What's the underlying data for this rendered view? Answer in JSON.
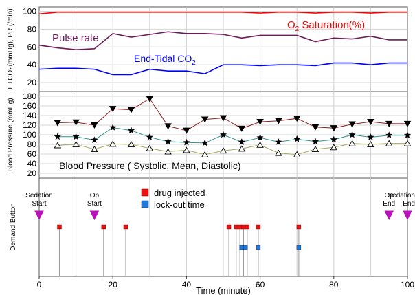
{
  "colors": {
    "o2": "#ff0000",
    "pulse": "#6b1a5a",
    "etco2": "#0000ff",
    "systolic": "#8b1a1a",
    "mean": "#2f8f8f",
    "diastolic": "#a8a860",
    "drug": "#ee1111",
    "lockout": "#2277dd",
    "event_marker": "#bb11bb"
  },
  "chart_data": [
    {
      "type": "line",
      "ylabel": "ETCO2(mmHg), PR (/min)",
      "ylim": [
        10,
        105
      ],
      "yticks": [
        20,
        40,
        60,
        80,
        100
      ],
      "xlim": [
        0,
        100
      ],
      "grid": true,
      "annotations": {
        "o2_prefix": "O",
        "o2_sub": "2",
        "o2_suffix": " Saturation(%)",
        "pulse": "Pulse rate",
        "etco2_prefix": "End-Tidal CO",
        "etco2_sub": "2"
      },
      "series": [
        {
          "name": "O2 Saturation(%)",
          "x": [
            0,
            5,
            10,
            15,
            20,
            25,
            30,
            35,
            40,
            45,
            50,
            55,
            60,
            65,
            70,
            75,
            80,
            85,
            90,
            95,
            100
          ],
          "values": [
            97,
            99,
            99,
            99,
            99,
            99,
            99,
            99,
            99,
            99,
            99,
            99,
            98,
            99,
            99,
            98,
            99,
            99,
            98,
            99,
            99
          ]
        },
        {
          "name": "Pulse rate",
          "x": [
            0,
            5,
            10,
            15,
            20,
            25,
            30,
            35,
            40,
            45,
            50,
            55,
            60,
            65,
            70,
            75,
            80,
            85,
            90,
            95,
            100
          ],
          "values": [
            62,
            59,
            57,
            58,
            75,
            71,
            74,
            77,
            75,
            75,
            74,
            70,
            73,
            73,
            73,
            66,
            70,
            69,
            72,
            68,
            68
          ]
        },
        {
          "name": "End-Tidal CO2",
          "x": [
            0,
            5,
            10,
            15,
            20,
            25,
            30,
            35,
            40,
            45,
            50,
            55,
            60,
            65,
            70,
            75,
            80,
            85,
            90,
            95,
            100
          ],
          "values": [
            35,
            36,
            36,
            35,
            29,
            29,
            35,
            33,
            33,
            30,
            40,
            40,
            39,
            40,
            40,
            39,
            42,
            42,
            40,
            42,
            42
          ]
        }
      ]
    },
    {
      "type": "line",
      "ylabel": "Blood Pressure (mmHg)",
      "title": "Blood Pressure ( Systolic, Mean, Diastolic)",
      "ylim": [
        10,
        190
      ],
      "yticks": [
        20,
        40,
        60,
        80,
        100,
        120,
        140,
        160,
        180
      ],
      "xlim": [
        0,
        100
      ],
      "grid": true,
      "series": [
        {
          "name": "Systolic",
          "marker": "triangle-down",
          "x": [
            5,
            10,
            15,
            20,
            25,
            30,
            35,
            40,
            45,
            50,
            55,
            60,
            65,
            70,
            75,
            80,
            85,
            90,
            95,
            100
          ],
          "values": [
            125,
            126,
            120,
            154,
            152,
            175,
            118,
            109,
            132,
            135,
            113,
            127,
            129,
            134,
            116,
            114,
            122,
            127,
            123,
            123
          ]
        },
        {
          "name": "Mean",
          "marker": "star",
          "x": [
            5,
            10,
            15,
            20,
            25,
            30,
            35,
            40,
            45,
            50,
            55,
            60,
            65,
            70,
            75,
            80,
            85,
            90,
            95,
            100
          ],
          "values": [
            96,
            96,
            89,
            115,
            109,
            95,
            86,
            84,
            83,
            100,
            85,
            94,
            85,
            91,
            86,
            90,
            100,
            95,
            99,
            99
          ]
        },
        {
          "name": "Diastolic",
          "marker": "triangle-up",
          "x": [
            5,
            10,
            15,
            20,
            25,
            30,
            35,
            40,
            45,
            50,
            55,
            60,
            65,
            70,
            75,
            80,
            85,
            90,
            95,
            100
          ],
          "values": [
            78,
            80,
            70,
            81,
            80,
            72,
            65,
            68,
            59,
            67,
            71,
            79,
            62,
            59,
            70,
            74,
            82,
            80,
            82,
            82
          ]
        }
      ]
    },
    {
      "type": "scatter",
      "ylabel": "Demand Button",
      "xlabel": "Time (minute)",
      "xlim": [
        0,
        100
      ],
      "xticks": [
        0,
        20,
        40,
        60,
        80,
        100
      ],
      "grid": true,
      "legend": {
        "placement": "top-center",
        "drug": "drug injected",
        "lockout": "lock-out time"
      },
      "events": [
        {
          "x": 0,
          "line1": "Sedation",
          "line2": "Start"
        },
        {
          "x": 15,
          "line1": "Op",
          "line2": "Start"
        },
        {
          "x": 95,
          "line1": "Op",
          "line2": "End"
        },
        {
          "x": 100,
          "line1": "Sedation",
          "line2": "End"
        }
      ],
      "drug_injected_x": [
        5.5,
        17.5,
        23.5,
        51.5,
        53.5,
        54.5,
        55.5,
        56.5,
        59.5,
        70.5
      ],
      "lockout_x": [
        55.0,
        56.0,
        59.5,
        70.5
      ]
    }
  ]
}
